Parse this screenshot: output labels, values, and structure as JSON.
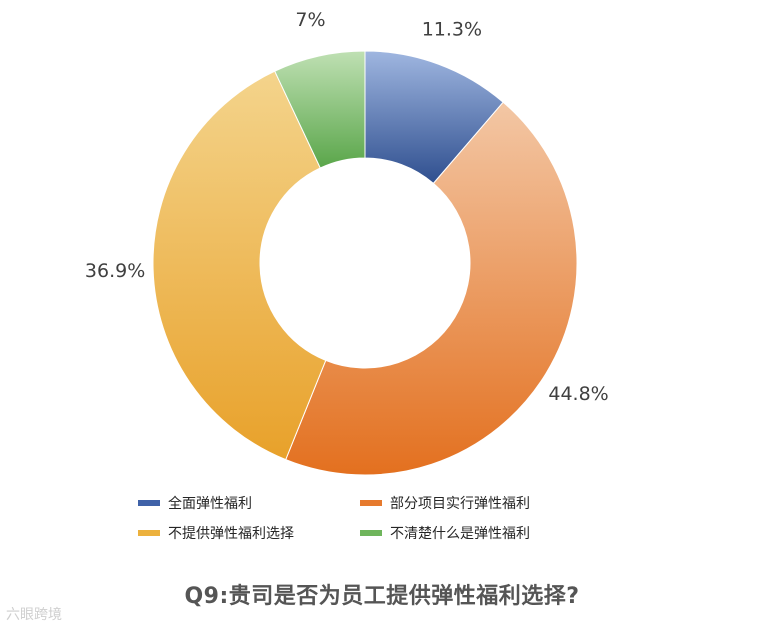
{
  "chart_data": {
    "type": "pie",
    "donut": true,
    "categories": [
      "全面弹性福利",
      "部分项目实行弹性福利",
      "不提供弹性福利选择",
      "不清楚什么是弹性福利"
    ],
    "values": [
      11.3,
      44.8,
      36.9,
      7.0
    ],
    "data_labels": [
      "11.3%",
      "44.8%",
      "36.9%",
      "7%"
    ],
    "colors": [
      "#3f62a8",
      "#e67a2e",
      "#ecb13d",
      "#6fb55c"
    ],
    "legend_position": "bottom",
    "title": "Q9:贵司是否为员工提供弹性福利选择?"
  },
  "watermark": "六眼跨境"
}
